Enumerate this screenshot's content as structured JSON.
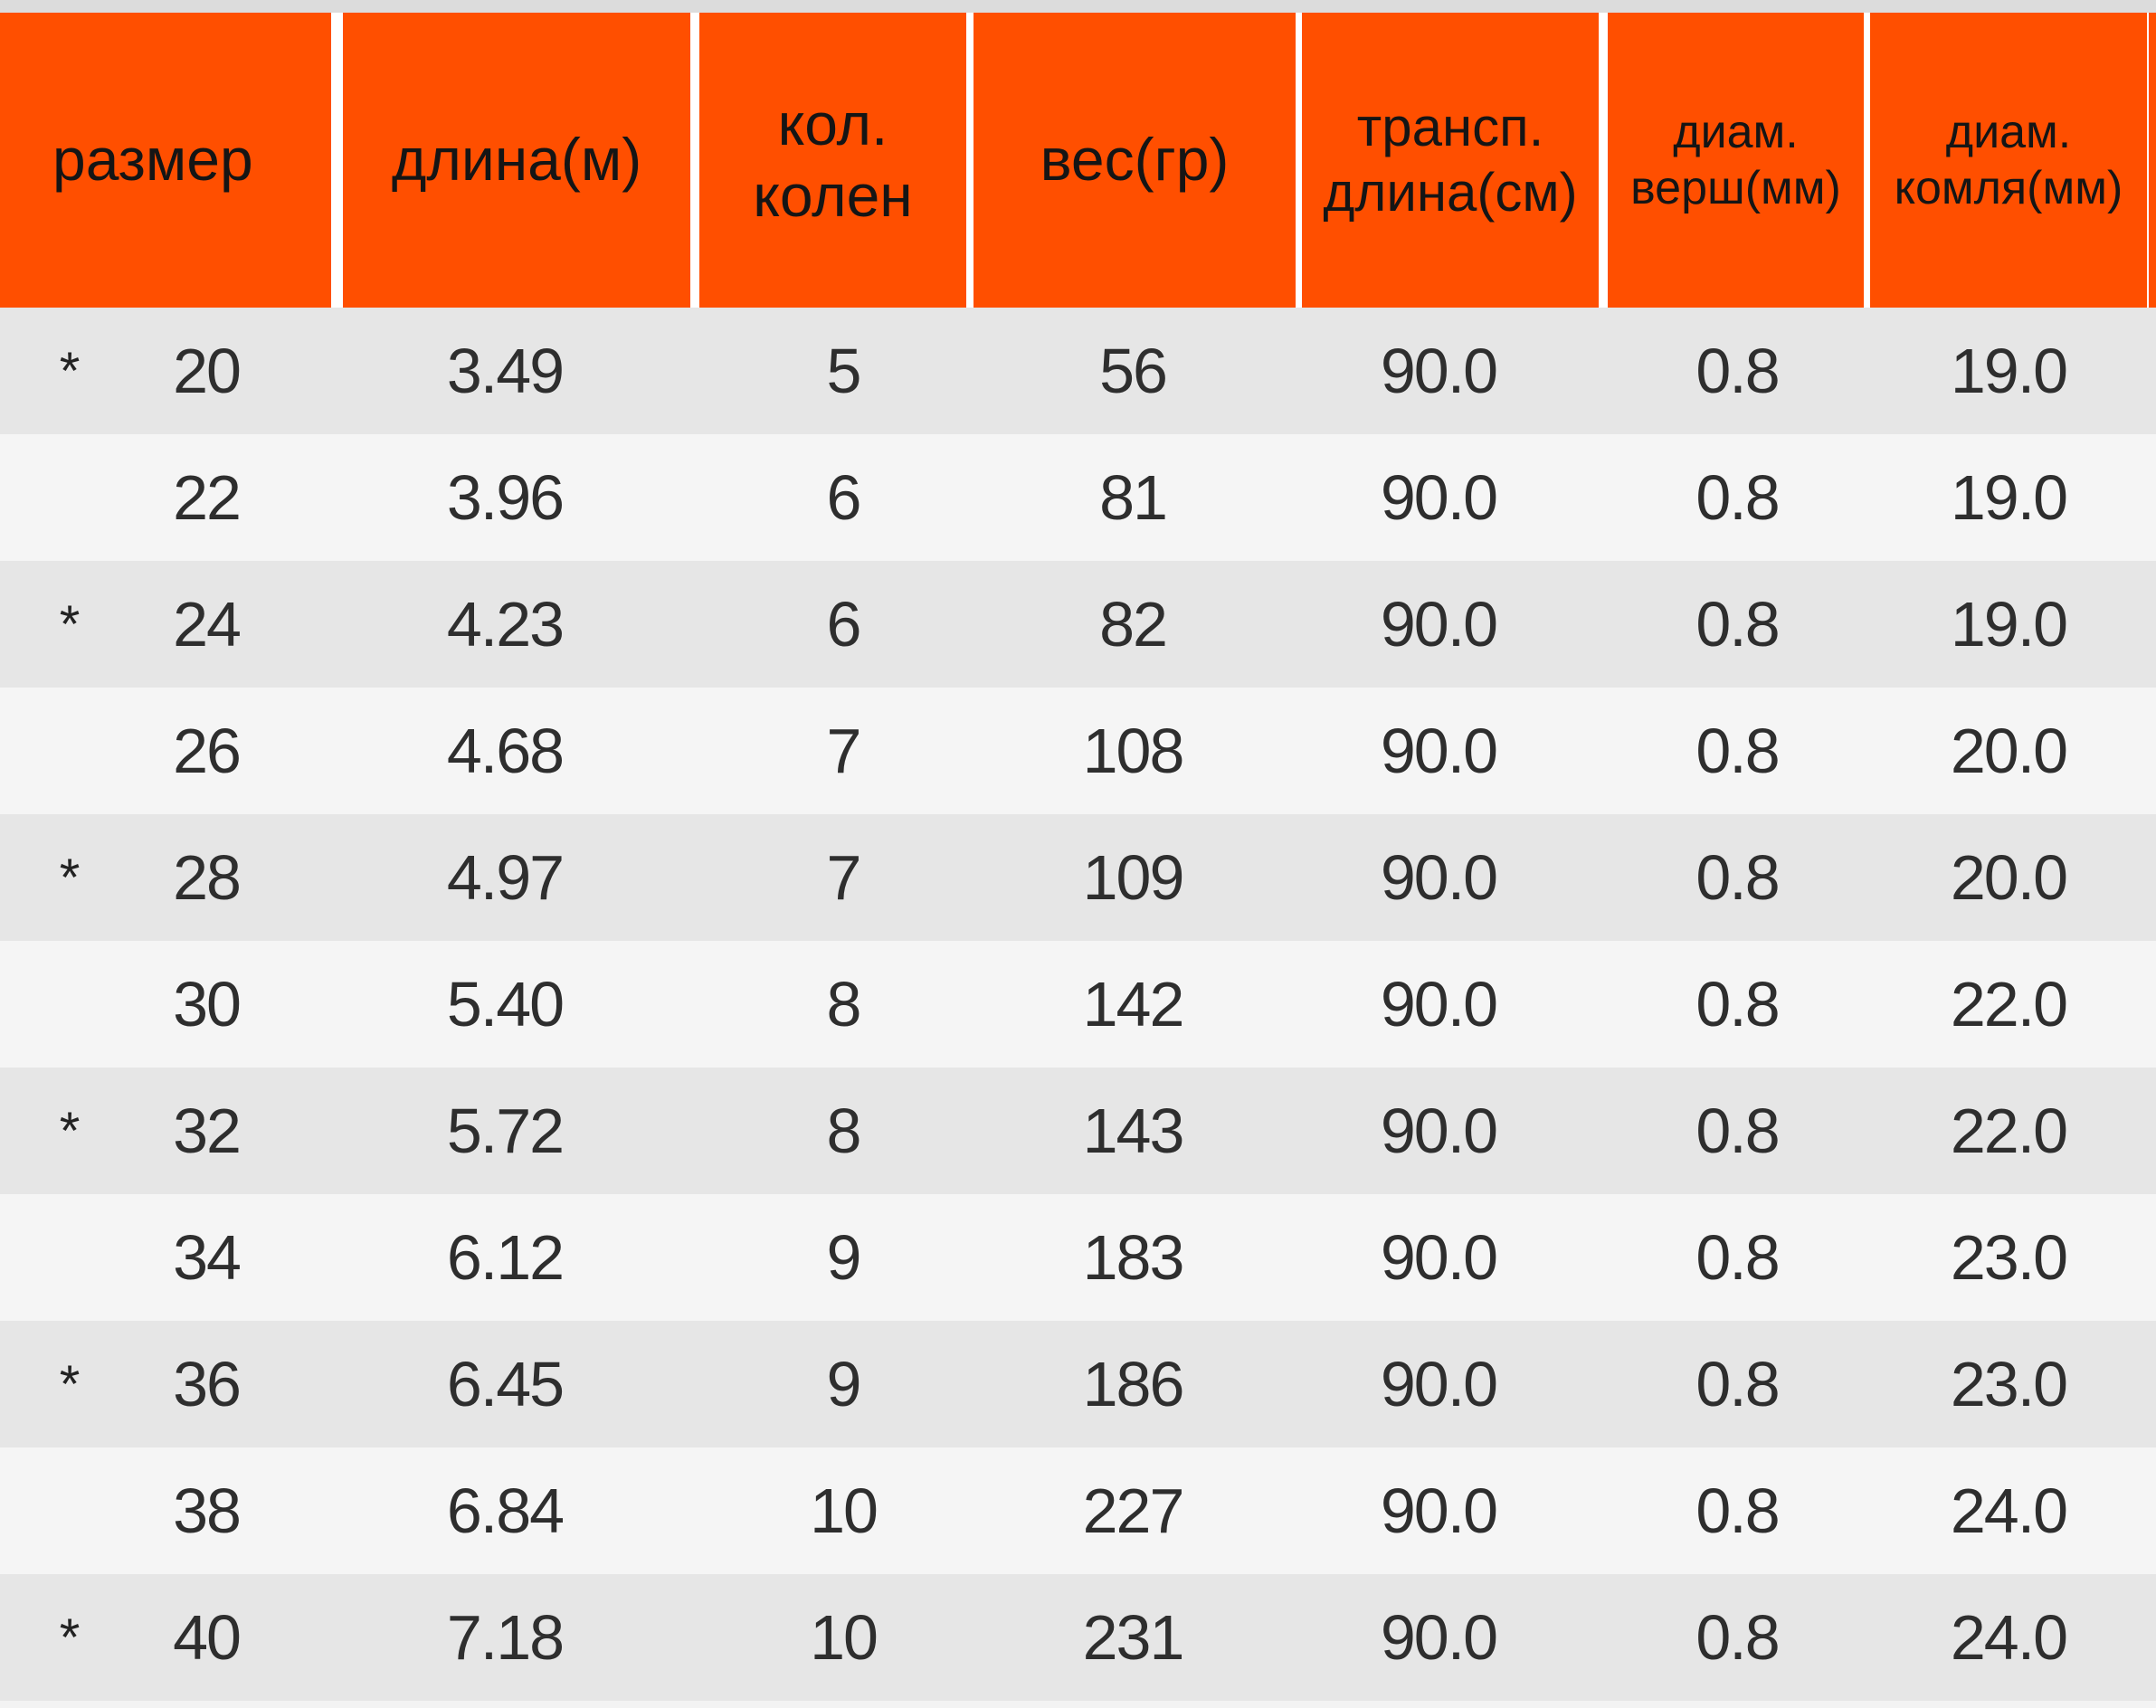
{
  "colors": {
    "header_bg": "#ff4f00",
    "row_odd": "#e6e6e6",
    "row_even": "#f5f5f5",
    "text": "#2e2e2e"
  },
  "columns": [
    "размер",
    "длина(м)",
    "кол.\nколен",
    "вес(гр)",
    "трансп.\nдлина(см)",
    "диам.\nверш(мм)",
    "диам.\nкомля(мм)"
  ],
  "rows": [
    {
      "marker": "*",
      "cells": [
        "20",
        "3.49",
        "5",
        "56",
        "90.0",
        "0.8",
        "19.0"
      ]
    },
    {
      "marker": "",
      "cells": [
        "22",
        "3.96",
        "6",
        "81",
        "90.0",
        "0.8",
        "19.0"
      ]
    },
    {
      "marker": "*",
      "cells": [
        "24",
        "4.23",
        "6",
        "82",
        "90.0",
        "0.8",
        "19.0"
      ]
    },
    {
      "marker": "",
      "cells": [
        "26",
        "4.68",
        "7",
        "108",
        "90.0",
        "0.8",
        "20.0"
      ]
    },
    {
      "marker": "*",
      "cells": [
        "28",
        "4.97",
        "7",
        "109",
        "90.0",
        "0.8",
        "20.0"
      ]
    },
    {
      "marker": "",
      "cells": [
        "30",
        "5.40",
        "8",
        "142",
        "90.0",
        "0.8",
        "22.0"
      ]
    },
    {
      "marker": "*",
      "cells": [
        "32",
        "5.72",
        "8",
        "143",
        "90.0",
        "0.8",
        "22.0"
      ]
    },
    {
      "marker": "",
      "cells": [
        "34",
        "6.12",
        "9",
        "183",
        "90.0",
        "0.8",
        "23.0"
      ]
    },
    {
      "marker": "*",
      "cells": [
        "36",
        "6.45",
        "9",
        "186",
        "90.0",
        "0.8",
        "23.0"
      ]
    },
    {
      "marker": "",
      "cells": [
        "38",
        "6.84",
        "10",
        "227",
        "90.0",
        "0.8",
        "24.0"
      ]
    },
    {
      "marker": "*",
      "cells": [
        "40",
        "7.18",
        "10",
        "231",
        "90.0",
        "0.8",
        "24.0"
      ]
    }
  ]
}
